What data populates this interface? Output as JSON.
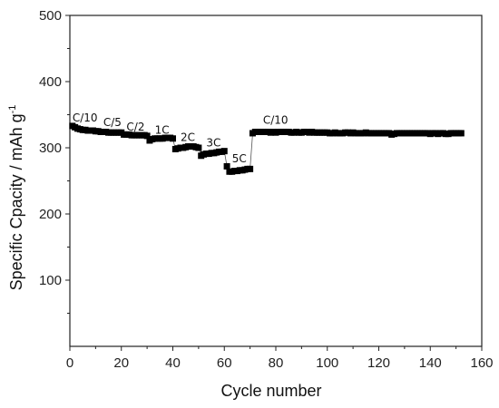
{
  "chart_data": {
    "type": "scatter",
    "title": "",
    "xlabel": "Cycle number",
    "ylabel_main": "Specific Cpacity / mAh g",
    "ylabel_sup": "-1",
    "xlim": [
      0,
      160
    ],
    "ylim": [
      0,
      500
    ],
    "xticks": [
      "0",
      "20",
      "40",
      "60",
      "80",
      "100",
      "120",
      "140",
      "160"
    ],
    "yticks": [
      "100",
      "200",
      "300",
      "400",
      "500"
    ],
    "grid": false,
    "legend": "none",
    "marker_color": "#000000",
    "annotations": [
      {
        "text": "C/10",
        "x": 1,
        "y": 340
      },
      {
        "text": "C/5",
        "x": 13,
        "y": 333
      },
      {
        "text": "C/2",
        "x": 22,
        "y": 326
      },
      {
        "text": "1C",
        "x": 33,
        "y": 321
      },
      {
        "text": "2C",
        "x": 43,
        "y": 310
      },
      {
        "text": "3C",
        "x": 53,
        "y": 302
      },
      {
        "text": "5C",
        "x": 63,
        "y": 278
      },
      {
        "text": "C/10",
        "x": 75,
        "y": 336
      }
    ],
    "series": [
      {
        "x": [
          1,
          2,
          3,
          4,
          5,
          6,
          7,
          8,
          9,
          10,
          11,
          12,
          13,
          14,
          15,
          16,
          17,
          18,
          19,
          20,
          21,
          22,
          23,
          24,
          25,
          26,
          27,
          28,
          29,
          30,
          31,
          32,
          33,
          34,
          35,
          36,
          37,
          38,
          39,
          40,
          41,
          42,
          43,
          44,
          45,
          46,
          47,
          48,
          49,
          50,
          51,
          52,
          53,
          54,
          55,
          56,
          57,
          58,
          59,
          60,
          61,
          62,
          63,
          64,
          65,
          66,
          67,
          68,
          69,
          70,
          71,
          72,
          73,
          74,
          75,
          76,
          77,
          78,
          79,
          80,
          81,
          82,
          83,
          84,
          85,
          86,
          87,
          88,
          89,
          90,
          91,
          92,
          93,
          94,
          95,
          96,
          97,
          98,
          99,
          100,
          101,
          102,
          103,
          104,
          105,
          106,
          107,
          108,
          109,
          110,
          111,
          112,
          113,
          114,
          115,
          116,
          117,
          118,
          119,
          120,
          121,
          122,
          123,
          124,
          125,
          126,
          127,
          128,
          129,
          130,
          131,
          132,
          133,
          134,
          135,
          136,
          137,
          138,
          139,
          140,
          141,
          142,
          143,
          144,
          145,
          146,
          147,
          148,
          149,
          150,
          151,
          152
        ],
        "y": [
          333,
          331,
          329,
          328,
          327,
          327,
          326,
          326,
          326,
          325,
          325,
          324,
          324,
          324,
          323,
          323,
          323,
          323,
          323,
          323,
          320,
          320,
          320,
          319,
          319,
          319,
          319,
          319,
          319,
          318,
          311,
          313,
          314,
          314,
          314,
          314,
          315,
          315,
          315,
          314,
          298,
          299,
          300,
          300,
          301,
          302,
          302,
          302,
          301,
          300,
          288,
          290,
          291,
          291,
          292,
          292,
          293,
          294,
          294,
          295,
          272,
          264,
          264,
          265,
          265,
          266,
          266,
          267,
          268,
          268,
          322,
          324,
          324,
          324,
          324,
          324,
          324,
          323,
          324,
          323,
          324,
          324,
          324,
          324,
          324,
          323,
          323,
          324,
          323,
          323,
          324,
          324,
          323,
          324,
          323,
          323,
          323,
          323,
          323,
          323,
          322,
          322,
          323,
          322,
          322,
          322,
          323,
          323,
          322,
          323,
          322,
          322,
          322,
          322,
          323,
          322,
          322,
          322,
          322,
          322,
          322,
          322,
          322,
          322,
          320,
          321,
          322,
          322,
          322,
          322,
          322,
          322,
          322,
          322,
          322,
          322,
          322,
          322,
          322,
          321,
          322,
          322,
          321,
          322,
          322,
          321,
          321,
          322,
          322,
          322,
          322,
          322
        ]
      }
    ]
  }
}
